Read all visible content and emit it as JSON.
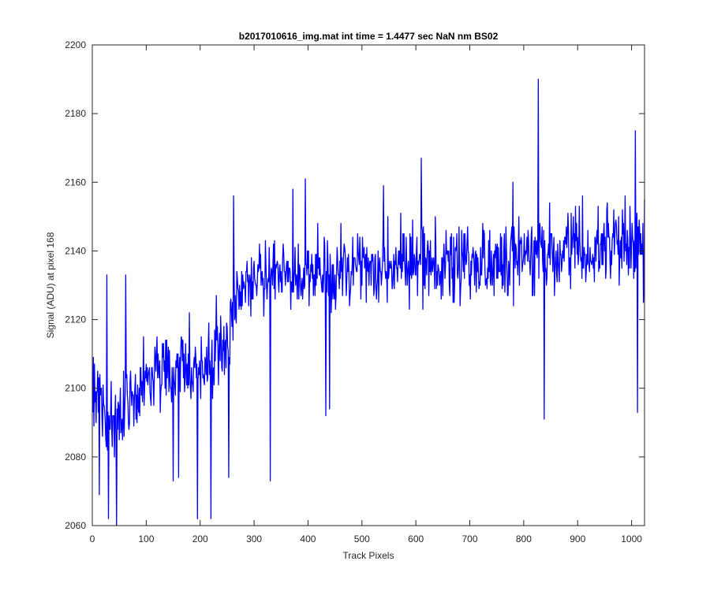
{
  "chart_data": {
    "type": "line",
    "title": "b2017010616_img.mat int time = 1.4477 sec  NaN nm BS02",
    "xlabel": "Track Pixels",
    "ylabel": "Signal (ADU) at pixel 168",
    "xlim": [
      0,
      1024
    ],
    "ylim": [
      2060,
      2200
    ],
    "xticks": [
      0,
      100,
      200,
      300,
      400,
      500,
      600,
      700,
      800,
      900,
      1000
    ],
    "yticks": [
      2060,
      2080,
      2100,
      2120,
      2140,
      2160,
      2180,
      2200
    ],
    "grid": false,
    "box": true,
    "series": [
      {
        "color": "#0000ff",
        "x_start": 1,
        "x_step": 1,
        "note_values_are_sampled_trend": true,
        "trend_anchors": [
          [
            0,
            2097
          ],
          [
            20,
            2092
          ],
          [
            40,
            2090
          ],
          [
            60,
            2094
          ],
          [
            80,
            2098
          ],
          [
            100,
            2102
          ],
          [
            120,
            2106
          ],
          [
            140,
            2103
          ],
          [
            160,
            2107
          ],
          [
            180,
            2106
          ],
          [
            200,
            2105
          ],
          [
            220,
            2109
          ],
          [
            240,
            2112
          ],
          [
            255,
            2116
          ],
          [
            262,
            2128
          ],
          [
            280,
            2130
          ],
          [
            300,
            2131
          ],
          [
            350,
            2133
          ],
          [
            400,
            2134
          ],
          [
            450,
            2133
          ],
          [
            500,
            2136
          ],
          [
            550,
            2137
          ],
          [
            600,
            2137
          ],
          [
            650,
            2136
          ],
          [
            700,
            2137
          ],
          [
            750,
            2137
          ],
          [
            800,
            2139
          ],
          [
            850,
            2140
          ],
          [
            900,
            2141
          ],
          [
            950,
            2140
          ],
          [
            1000,
            2141
          ],
          [
            1024,
            2141
          ]
        ],
        "extremes": [
          [
            13,
            2069
          ],
          [
            27,
            2133
          ],
          [
            30,
            2062
          ],
          [
            45,
            2060
          ],
          [
            62,
            2133
          ],
          [
            150,
            2073
          ],
          [
            160,
            2074
          ],
          [
            195,
            2062
          ],
          [
            220,
            2062
          ],
          [
            230,
            2127
          ],
          [
            253,
            2074
          ],
          [
            262,
            2156
          ],
          [
            330,
            2073
          ],
          [
            372,
            2158
          ],
          [
            395,
            2161
          ],
          [
            433,
            2092
          ],
          [
            440,
            2094
          ],
          [
            540,
            2159
          ],
          [
            610,
            2167
          ],
          [
            780,
            2160
          ],
          [
            827,
            2190
          ],
          [
            838,
            2091
          ],
          [
            1007,
            2175
          ],
          [
            1011,
            2093
          ],
          [
            1022,
            2125
          ]
        ]
      }
    ]
  }
}
